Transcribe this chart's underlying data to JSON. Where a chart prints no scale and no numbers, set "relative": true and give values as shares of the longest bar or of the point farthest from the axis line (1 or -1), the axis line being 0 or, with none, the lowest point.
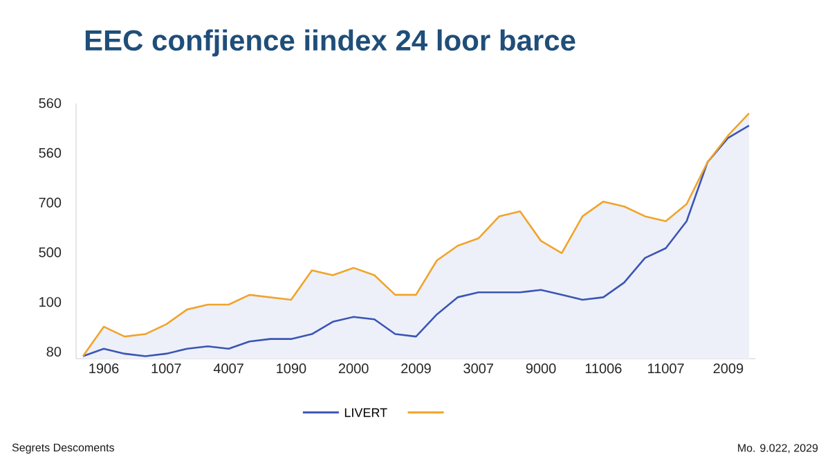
{
  "chart_data": {
    "type": "line",
    "title": "EEC confjience iindex 24 loor barce",
    "relative": true,
    "categories": [
      null,
      "1906",
      null,
      null,
      "1007",
      null,
      null,
      "4007",
      null,
      null,
      "1090",
      null,
      null,
      "2000",
      null,
      null,
      "2009",
      null,
      null,
      "3007",
      null,
      null,
      "9000",
      null,
      null,
      "11006",
      null,
      null,
      "11007",
      null,
      null,
      "2009",
      null
    ],
    "legend": "bottom",
    "series": [
      {
        "name": "LIVERT",
        "color": "#3b55b5",
        "values": [
          0.01,
          0.04,
          0.02,
          0.01,
          0.02,
          0.04,
          0.05,
          0.04,
          0.07,
          0.08,
          0.08,
          0.1,
          0.15,
          0.17,
          0.16,
          0.1,
          0.09,
          0.18,
          0.25,
          0.27,
          0.27,
          0.27,
          0.28,
          0.26,
          0.24,
          0.25,
          0.31,
          0.41,
          0.45,
          0.56,
          0.8,
          0.9,
          0.95
        ]
      },
      {
        "type": "area",
        "color": "#f0a42a",
        "values": [
          0.01,
          0.13,
          0.09,
          0.1,
          0.14,
          0.2,
          0.22,
          0.22,
          0.26,
          0.25,
          0.24,
          0.36,
          0.34,
          0.37,
          0.34,
          0.26,
          0.26,
          0.4,
          0.46,
          0.49,
          0.58,
          0.6,
          0.48,
          0.43,
          0.58,
          0.64,
          0.62,
          0.58,
          0.56,
          0.63,
          0.8,
          0.91,
          1
        ]
      }
    ],
    "annotations": [
      "80",
      "100",
      "500",
      "700",
      "560",
      "560",
      "Segrets Descoments",
      "Mo. 9.022, 2029"
    ]
  }
}
